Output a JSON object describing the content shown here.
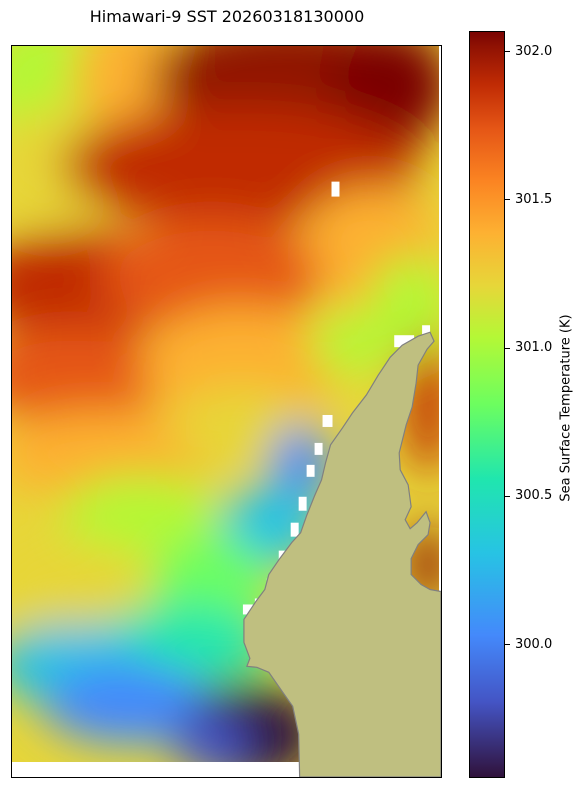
{
  "title": "Himawari-9 SST 20260318130000",
  "colorbar": {
    "label": "Sea Surface Temperature (K)",
    "range": [
      299.55,
      302.07
    ],
    "ticks": [
      {
        "value": 300.0,
        "label": "300.0"
      },
      {
        "value": 300.5,
        "label": "300.5"
      },
      {
        "value": 301.0,
        "label": "301.0"
      },
      {
        "value": 301.5,
        "label": "301.5"
      },
      {
        "value": 302.0,
        "label": "302.0"
      }
    ],
    "colormap": [
      "#30123b",
      "#4454c4",
      "#4489fb",
      "#27c3e4",
      "#20e6ae",
      "#6cfe5f",
      "#b4f836",
      "#e7d639",
      "#fdb132",
      "#fb8422",
      "#e55616",
      "#c02b04",
      "#901203",
      "#7a0403"
    ]
  },
  "map": {
    "land_color": "#bfbf80",
    "coastline_color": "#808080",
    "missing_data_color": "#ffffff"
  }
}
